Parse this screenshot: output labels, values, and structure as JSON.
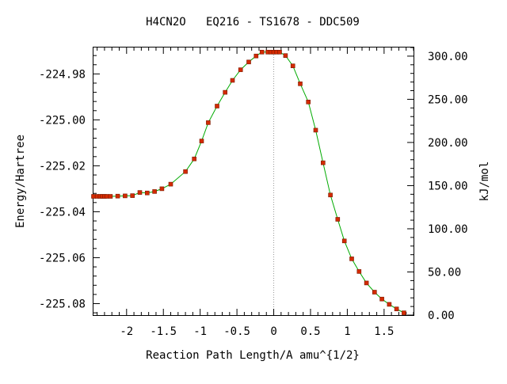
{
  "chart_data": {
    "type": "line",
    "title": "H4CN2O   EQ216 - TS1678 - DDC509",
    "xlabel": "Reaction Path Length/A amu^{1/2}",
    "ylabel": "Energy/Hartree",
    "y2label": "kJ/mol",
    "xlim": [
      -2.45,
      1.9
    ],
    "ylim": [
      -225.085,
      -224.9685
    ],
    "y2lim": [
      0.0,
      310.0
    ],
    "x_ticks": [
      -2,
      -1.5,
      -1,
      -0.5,
      0,
      0.5,
      1,
      1.5
    ],
    "x_tick_labels": [
      "-2",
      "-1.5",
      "-1",
      "-0.5",
      "0",
      "0.5",
      "1",
      "1.5"
    ],
    "y_ticks": [
      -224.98,
      -225.0,
      -225.02,
      -225.04,
      -225.06,
      -225.08
    ],
    "y_tick_labels": [
      "-224.98",
      "-225.00",
      "-225.02",
      "-225.04",
      "-225.06",
      "-225.08"
    ],
    "y2_ticks": [
      0,
      50,
      100,
      150,
      200,
      250,
      300
    ],
    "y2_tick_labels": [
      "0.00",
      "50.00",
      "100.00",
      "150.00",
      "200.00",
      "250.00",
      "300.00"
    ],
    "ts_marker_x": 0.0,
    "grid": false,
    "colors": {
      "line": "#00aa00",
      "marker": "#d42a00",
      "ts_line": "#999999",
      "axes": "#000000"
    },
    "series": [
      {
        "x": [
          -2.45,
          -2.4,
          -2.36,
          -2.33,
          -2.3,
          -2.27,
          -2.22,
          -2.12,
          -2.02,
          -1.92,
          -1.82,
          -1.72,
          -1.62,
          -1.52,
          -1.4,
          -1.2,
          -1.08,
          -0.98,
          -0.89,
          -0.77,
          -0.66,
          -0.56,
          -0.45,
          -0.34,
          -0.24,
          -0.16,
          -0.08,
          -0.04,
          0.0,
          0.04,
          0.08,
          0.16,
          0.26,
          0.36,
          0.47,
          0.57,
          0.67,
          0.77,
          0.87,
          0.96,
          1.06,
          1.16,
          1.26,
          1.37,
          1.47,
          1.57,
          1.67,
          1.77
        ],
        "y": [
          -225.0333,
          -225.0333,
          -225.0333,
          -225.0333,
          -225.0333,
          -225.0333,
          -225.0333,
          -225.0332,
          -225.0331,
          -225.033,
          -225.0316,
          -225.0318,
          -225.0312,
          -225.03,
          -225.028,
          -225.0225,
          -225.017,
          -225.0092,
          -225.0012,
          -224.994,
          -224.988,
          -224.9828,
          -224.9782,
          -224.9748,
          -224.9722,
          -224.9705,
          -224.9705,
          -224.9705,
          -224.9705,
          -224.9705,
          -224.9705,
          -224.972,
          -224.9765,
          -224.9843,
          -224.9922,
          -225.0045,
          -225.0187,
          -225.0327,
          -225.0433,
          -225.0527,
          -225.0605,
          -225.066,
          -225.071,
          -225.075,
          -225.078,
          -225.0803,
          -225.0823,
          -225.084
        ]
      }
    ]
  }
}
